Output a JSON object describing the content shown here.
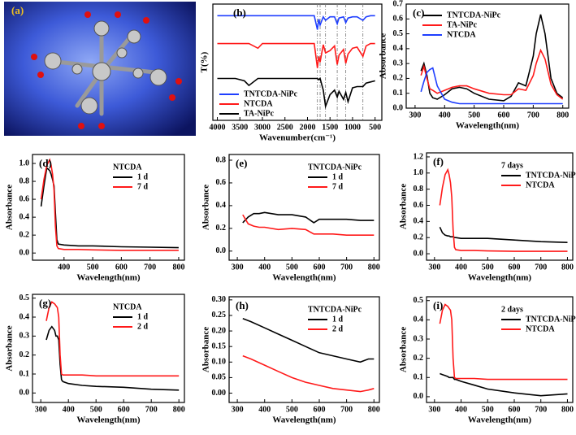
{
  "image_panel": {
    "label": "(a)"
  },
  "chart_data": [
    {
      "type": "line",
      "label": "(b)",
      "x_label": "Wavenumber(cm⁻¹)",
      "y_label": "T(%)",
      "legend": "lower left",
      "xlim": [
        4100,
        350
      ],
      "xticks": [
        4000,
        3500,
        3000,
        2500,
        2000,
        1500,
        1000,
        500
      ],
      "ylim": [
        0,
        10
      ],
      "yticks": [],
      "vlines": [
        1780,
        1720,
        1600,
        1340,
        1150,
        770
      ],
      "x": [
        4000,
        3600,
        3400,
        3300,
        3100,
        3000,
        2500,
        2000,
        1850,
        1780,
        1750,
        1720,
        1650,
        1600,
        1500,
        1400,
        1340,
        1300,
        1200,
        1150,
        1100,
        1000,
        900,
        770,
        700,
        600,
        500
      ],
      "series": [
        {
          "name": "TNTCDA-NiPc",
          "color": "#1f3fff",
          "values": [
            9.0,
            9.0,
            9.0,
            9.0,
            9.0,
            9.0,
            9.0,
            9.0,
            9.0,
            7.8,
            8.7,
            8.2,
            8.9,
            8.6,
            8.9,
            8.9,
            8.3,
            8.8,
            8.9,
            8.4,
            8.8,
            8.9,
            8.9,
            8.6,
            8.9,
            9.0,
            9.0
          ]
        },
        {
          "name": "NTCDA",
          "color": "#ff1a1a",
          "values": [
            6.6,
            6.6,
            6.6,
            6.6,
            6.2,
            6.6,
            6.6,
            6.6,
            6.6,
            4.5,
            5.5,
            5.0,
            6.5,
            5.8,
            6.0,
            6.4,
            4.8,
            5.6,
            6.1,
            4.9,
            5.7,
            6.2,
            6.3,
            5.5,
            6.4,
            6.6,
            6.6
          ]
        },
        {
          "name": "TA-NiPc",
          "color": "#000000",
          "values": [
            3.6,
            3.6,
            3.4,
            3.0,
            3.6,
            3.6,
            3.6,
            3.6,
            3.6,
            3.6,
            3.5,
            3.6,
            2.6,
            1.2,
            2.2,
            2.6,
            2.0,
            2.5,
            1.8,
            2.4,
            1.6,
            2.8,
            2.9,
            2.9,
            3.2,
            3.3,
            3.4
          ]
        }
      ]
    },
    {
      "type": "line",
      "label": "(c)",
      "x_label": "Wavelength(nm)",
      "y_label": "Absorbance",
      "legend": "upper left",
      "xlim": [
        270,
        820
      ],
      "xticks": [
        300,
        400,
        500,
        600,
        700,
        800
      ],
      "ylim": [
        0,
        0.7
      ],
      "yticks": [
        {
          "value": 0,
          "label": "0.0"
        },
        0.1,
        0.2,
        0.3,
        0.4,
        0.5,
        0.6,
        0.7
      ],
      "x": [
        320,
        330,
        340,
        350,
        360,
        375,
        400,
        425,
        450,
        475,
        500,
        550,
        600,
        625,
        650,
        675,
        700,
        710,
        725,
        740,
        760,
        780,
        800
      ],
      "series": [
        {
          "name": "TNTCDA-NiPc",
          "color": "#000000",
          "values": [
            0.25,
            0.3,
            0.22,
            0.1,
            0.07,
            0.06,
            0.09,
            0.13,
            0.14,
            0.13,
            0.1,
            0.06,
            0.05,
            0.08,
            0.17,
            0.15,
            0.35,
            0.5,
            0.63,
            0.5,
            0.2,
            0.1,
            0.07
          ]
        },
        {
          "name": "TA-NiPc",
          "color": "#ff1a1a",
          "values": [
            0.22,
            0.28,
            0.2,
            0.13,
            0.12,
            0.1,
            0.12,
            0.14,
            0.15,
            0.15,
            0.13,
            0.1,
            0.09,
            0.09,
            0.13,
            0.12,
            0.22,
            0.3,
            0.39,
            0.33,
            0.16,
            0.09,
            0.06
          ]
        },
        {
          "name": "NTCDA",
          "color": "#1f3fff",
          "values": [
            0.11,
            0.18,
            0.24,
            0.26,
            0.27,
            0.15,
            0.06,
            0.04,
            0.03,
            0.03,
            0.03,
            0.03,
            0.03,
            0.03,
            0.03,
            0.03,
            0.03,
            0.03,
            0.03,
            0.03,
            0.03,
            0.03,
            0.03
          ]
        }
      ]
    },
    {
      "type": "line",
      "label": "(d)",
      "annotation": "NTCDA",
      "x_label": "Wavelength(nm)",
      "y_label": "Absorbance",
      "legend": "upper right",
      "xlim": [
        290,
        820
      ],
      "xticks": [
        400,
        500,
        600,
        700,
        800
      ],
      "ylim": [
        -0.08,
        1.1
      ],
      "yticks": [
        {
          "value": 0,
          "label": "0.0"
        },
        0.2,
        0.4,
        0.6,
        0.8,
        {
          "value": 1,
          "label": "1.0"
        }
      ],
      "x": [
        320,
        330,
        340,
        350,
        355,
        360,
        365,
        370,
        375,
        380,
        400,
        450,
        500,
        600,
        700,
        800
      ],
      "series": [
        {
          "name": "1 d",
          "color": "#000000",
          "values": [
            0.52,
            0.75,
            0.95,
            0.92,
            0.88,
            0.82,
            0.75,
            0.45,
            0.15,
            0.1,
            0.09,
            0.08,
            0.08,
            0.07,
            0.065,
            0.06
          ]
        },
        {
          "name": "7 d",
          "color": "#ff1a1a",
          "values": [
            0.6,
            0.82,
            0.98,
            1.04,
            0.98,
            0.88,
            0.7,
            0.3,
            0.08,
            0.05,
            0.04,
            0.04,
            0.035,
            0.03,
            0.03,
            0.03
          ]
        }
      ]
    },
    {
      "type": "line",
      "label": "(e)",
      "annotation": "TNTCDA-NiPc",
      "x_label": "Wavelength(nm)",
      "y_label": "Absorbance",
      "legend": "upper right",
      "xlim": [
        270,
        820
      ],
      "xticks": [
        300,
        400,
        500,
        600,
        700,
        800
      ],
      "ylim": [
        -0.08,
        0.85
      ],
      "yticks": [
        {
          "value": 0,
          "label": "0.0"
        },
        0.2,
        0.4,
        0.6,
        0.8
      ],
      "x": [
        320,
        340,
        360,
        380,
        400,
        450,
        500,
        550,
        580,
        600,
        650,
        700,
        750,
        800
      ],
      "series": [
        {
          "name": "1 d",
          "color": "#000000",
          "values": [
            0.25,
            0.3,
            0.33,
            0.33,
            0.34,
            0.32,
            0.32,
            0.3,
            0.25,
            0.28,
            0.28,
            0.28,
            0.27,
            0.27
          ]
        },
        {
          "name": "7 d",
          "color": "#ff1a1a",
          "values": [
            0.32,
            0.24,
            0.22,
            0.21,
            0.21,
            0.19,
            0.2,
            0.19,
            0.15,
            0.15,
            0.15,
            0.14,
            0.14,
            0.14
          ]
        }
      ]
    },
    {
      "type": "line",
      "label": "(f)",
      "annotation": "7 days",
      "x_label": "Wavelength(nm)",
      "y_label": "Absorbance",
      "legend": "upper right",
      "xlim": [
        270,
        820
      ],
      "xticks": [
        300,
        400,
        500,
        600,
        700,
        800
      ],
      "ylim": [
        -0.08,
        1.25
      ],
      "yticks": [
        {
          "value": 0,
          "label": "0.0"
        },
        0.2,
        0.4,
        0.6,
        0.8,
        {
          "value": 1,
          "label": "1.0"
        },
        1.2
      ],
      "x": [
        320,
        330,
        340,
        350,
        355,
        360,
        365,
        370,
        375,
        380,
        400,
        450,
        500,
        600,
        700,
        800
      ],
      "series": [
        {
          "name": "TNTCDA-NiPc",
          "color": "#000000",
          "values": [
            0.33,
            0.26,
            0.23,
            0.22,
            0.22,
            0.21,
            0.21,
            0.21,
            0.2,
            0.2,
            0.19,
            0.19,
            0.19,
            0.17,
            0.15,
            0.14
          ]
        },
        {
          "name": "NTCDA",
          "color": "#ff1a1a",
          "values": [
            0.6,
            0.82,
            0.98,
            1.04,
            0.98,
            0.88,
            0.7,
            0.3,
            0.08,
            0.05,
            0.04,
            0.04,
            0.035,
            0.03,
            0.03,
            0.03
          ]
        }
      ]
    },
    {
      "type": "line",
      "label": "(g)",
      "annotation": "NTCDA",
      "x_label": "Wavelength(nm)",
      "y_label": "Absorbance",
      "legend": "upper right",
      "xlim": [
        270,
        820
      ],
      "xticks": [
        300,
        400,
        500,
        600,
        700,
        800
      ],
      "ylim": [
        -0.05,
        0.52
      ],
      "yticks": [
        {
          "value": 0,
          "label": "0.0"
        },
        0.1,
        0.2,
        0.3,
        0.4,
        0.5
      ],
      "x": [
        320,
        330,
        340,
        350,
        355,
        360,
        365,
        370,
        375,
        380,
        400,
        450,
        500,
        600,
        700,
        800
      ],
      "series": [
        {
          "name": "1 d",
          "color": "#000000",
          "values": [
            0.28,
            0.33,
            0.35,
            0.33,
            0.3,
            0.3,
            0.28,
            0.15,
            0.07,
            0.06,
            0.05,
            0.04,
            0.035,
            0.03,
            0.02,
            0.015
          ]
        },
        {
          "name": "2 d",
          "color": "#ff1a1a",
          "values": [
            0.38,
            0.45,
            0.48,
            0.47,
            0.46,
            0.45,
            0.4,
            0.2,
            0.1,
            0.095,
            0.095,
            0.095,
            0.09,
            0.09,
            0.09,
            0.09
          ]
        }
      ]
    },
    {
      "type": "line",
      "label": "(h)",
      "annotation": "TNTCDA-NiPc",
      "x_label": "Wavelength(nm)",
      "y_label": "Absorbance",
      "legend": "upper right",
      "xlim": [
        270,
        820
      ],
      "xticks": [
        300,
        400,
        500,
        600,
        700,
        800
      ],
      "ylim": [
        -0.03,
        0.31
      ],
      "yticks": [
        {
          "value": 0,
          "label": "0.00"
        },
        {
          "value": 0.05,
          "label": "0.05"
        },
        {
          "value": 0.1,
          "label": "0.10"
        },
        {
          "value": 0.15,
          "label": "0.15"
        },
        {
          "value": 0.2,
          "label": "0.20"
        },
        {
          "value": 0.25,
          "label": "0.25"
        },
        {
          "value": 0.3,
          "label": "0.30"
        }
      ],
      "x": [
        320,
        350,
        400,
        450,
        500,
        550,
        600,
        650,
        700,
        750,
        780,
        800
      ],
      "series": [
        {
          "name": "1 d",
          "color": "#000000",
          "values": [
            0.24,
            0.23,
            0.21,
            0.19,
            0.17,
            0.15,
            0.13,
            0.12,
            0.11,
            0.1,
            0.11,
            0.11
          ]
        },
        {
          "name": "2 d",
          "color": "#ff1a1a",
          "values": [
            0.12,
            0.11,
            0.09,
            0.07,
            0.05,
            0.035,
            0.025,
            0.015,
            0.01,
            0.005,
            0.01,
            0.015
          ]
        }
      ]
    },
    {
      "type": "line",
      "label": "(i)",
      "annotation": "2 days",
      "x_label": "Wavelength(nm)",
      "y_label": "Absorbance",
      "legend": "upper right",
      "xlim": [
        270,
        820
      ],
      "xticks": [
        300,
        400,
        500,
        600,
        700,
        800
      ],
      "ylim": [
        -0.03,
        0.52
      ],
      "yticks": [
        {
          "value": 0,
          "label": "0.0"
        },
        0.1,
        0.2,
        0.3,
        0.4,
        0.5
      ],
      "x": [
        320,
        330,
        340,
        350,
        355,
        360,
        365,
        370,
        375,
        380,
        400,
        450,
        500,
        600,
        700,
        800
      ],
      "series": [
        {
          "name": "TNTCDA-NiPc",
          "color": "#000000",
          "values": [
            0.12,
            0.115,
            0.11,
            0.105,
            0.1,
            0.1,
            0.1,
            0.1,
            0.09,
            0.09,
            0.08,
            0.06,
            0.04,
            0.02,
            0.005,
            0.015
          ]
        },
        {
          "name": "NTCDA",
          "color": "#ff1a1a",
          "values": [
            0.38,
            0.45,
            0.48,
            0.47,
            0.46,
            0.45,
            0.4,
            0.2,
            0.1,
            0.095,
            0.095,
            0.095,
            0.09,
            0.09,
            0.09,
            0.09
          ]
        }
      ]
    }
  ]
}
